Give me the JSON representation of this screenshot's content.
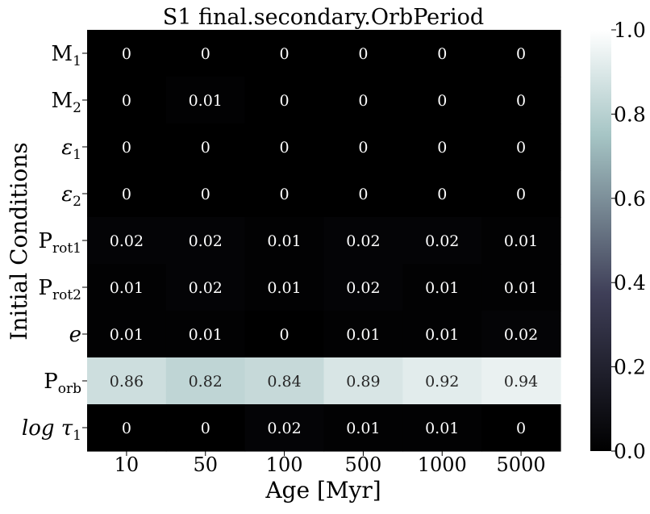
{
  "chart_data": {
    "type": "heatmap",
    "title": "S1 final.secondary.OrbPeriod",
    "xlabel": "Age [Myr]",
    "ylabel": "Initial Conditions",
    "x_categories": [
      "10",
      "50",
      "100",
      "500",
      "1000",
      "5000"
    ],
    "y_categories": [
      {
        "base": "M",
        "sub": "1",
        "italic": false
      },
      {
        "base": "M",
        "sub": "2",
        "italic": false
      },
      {
        "base": "ε",
        "sub": "1",
        "italic": true
      },
      {
        "base": "ε",
        "sub": "2",
        "italic": true
      },
      {
        "base": "P",
        "sub": "rot1",
        "italic": false
      },
      {
        "base": "P",
        "sub": "rot2",
        "italic": false
      },
      {
        "base": "e",
        "sub": "",
        "italic": true
      },
      {
        "base": "P",
        "sub": "orb",
        "italic": false
      },
      {
        "base": "log τ",
        "sub": "1",
        "italic": true
      }
    ],
    "values": [
      [
        0,
        0,
        0,
        0,
        0,
        0
      ],
      [
        0,
        0.01,
        0,
        0,
        0,
        0
      ],
      [
        0,
        0,
        0,
        0,
        0,
        0
      ],
      [
        0,
        0,
        0,
        0,
        0,
        0
      ],
      [
        0.02,
        0.02,
        0.01,
        0.02,
        0.02,
        0.01
      ],
      [
        0.01,
        0.02,
        0.01,
        0.02,
        0.01,
        0.01
      ],
      [
        0.01,
        0.01,
        0,
        0.01,
        0.01,
        0.02
      ],
      [
        0.86,
        0.82,
        0.84,
        0.89,
        0.92,
        0.94
      ],
      [
        0,
        0,
        0.02,
        0.01,
        0.01,
        0
      ]
    ],
    "colorbar": {
      "range": [
        0,
        1
      ],
      "ticks": [
        "0.0",
        "0.2",
        "0.4",
        "0.6",
        "0.8",
        "1.0"
      ],
      "colormap": "bone"
    }
  }
}
